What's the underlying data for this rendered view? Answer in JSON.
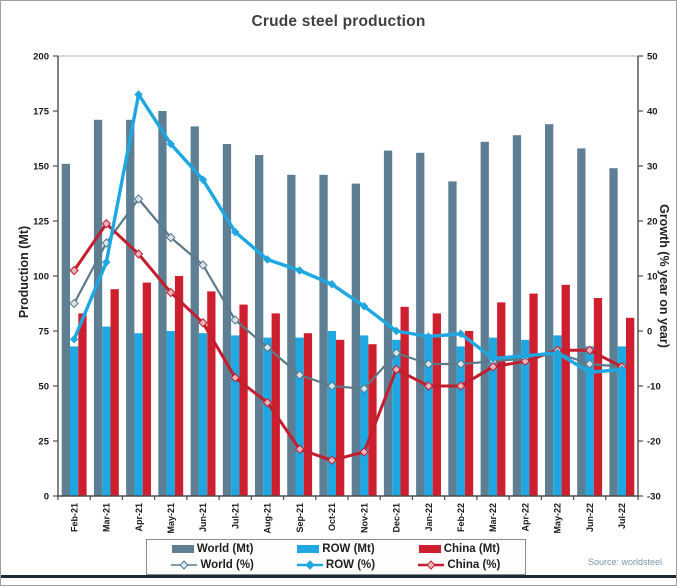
{
  "title": "Crude steel production",
  "source_note": "Source: worldsteel",
  "axes": {
    "left_title": "Production (Mt)",
    "right_title": "Growth (% year on year)",
    "left_ticks": [
      0,
      25,
      50,
      75,
      100,
      125,
      150,
      175,
      200
    ],
    "right_ticks": [
      -30,
      -20,
      -10,
      0,
      10,
      20,
      30,
      40,
      50
    ]
  },
  "colors": {
    "world_bar": "#5e7f93",
    "row_bar": "#1ea7e0",
    "china_bar": "#ce1f2f",
    "world_line": "#5a7a8a",
    "world_marker_fill": "#dbe4e9",
    "row_line": "#1ea7e0",
    "china_line": "#c41e2e",
    "china_marker_fill": "#e7b6ba",
    "axis": "#4d4d4d",
    "plot_top_border": "#b3b3b3",
    "tick_text": "#1a1a1a",
    "frame": "#9aa0a6",
    "bottom_rule": "#1b2a38"
  },
  "chart_data": {
    "type": "bar+line combo",
    "title": "Crude steel production",
    "categories": [
      "Feb-21",
      "Mar-21",
      "Apr-21",
      "May-21",
      "Jun-21",
      "Jul-21",
      "Aug-21",
      "Sep-21",
      "Oct-21",
      "Nov-21",
      "Dec-21",
      "Jan-22",
      "Feb-22",
      "Mar-22",
      "Apr-22",
      "May-22",
      "Jun-22",
      "Jul-22"
    ],
    "bar_series": [
      {
        "name": "World (Mt)",
        "axis": "left",
        "values": [
          151,
          171,
          171,
          175,
          168,
          160,
          155,
          146,
          146,
          142,
          157,
          156,
          143,
          161,
          164,
          169,
          158,
          149
        ]
      },
      {
        "name": "ROW (Mt)",
        "axis": "left",
        "values": [
          68,
          77,
          74,
          75,
          74,
          73,
          72,
          72,
          75,
          73,
          71,
          73,
          68,
          72,
          71,
          73,
          68,
          68
        ]
      },
      {
        "name": "China (Mt)",
        "axis": "left",
        "values": [
          83,
          94,
          97,
          100,
          93,
          87,
          83,
          74,
          71,
          69,
          86,
          83,
          75,
          88,
          92,
          96,
          90,
          81
        ]
      }
    ],
    "line_series": [
      {
        "name": "World (%)",
        "axis": "right",
        "values": [
          5,
          16,
          24,
          17,
          12,
          2,
          -3,
          -8,
          -10,
          -10.5,
          -4,
          -6,
          -6,
          -5.5,
          -5,
          -4,
          -6,
          -6.5
        ]
      },
      {
        "name": "ROW (%)",
        "axis": "right",
        "values": [
          -1.5,
          12.5,
          43,
          34,
          27.5,
          18,
          13,
          11,
          8.5,
          4.5,
          0,
          -1,
          -0.5,
          -5,
          -4.5,
          -4,
          -7.5,
          -7
        ]
      },
      {
        "name": "China (%)",
        "axis": "right",
        "values": [
          11,
          19.5,
          14,
          7,
          1.5,
          -8.5,
          -13,
          -21.5,
          -23.5,
          -22,
          -7,
          -10,
          -10,
          -6.5,
          -5.5,
          -3.5,
          -3.5,
          -6.5
        ]
      }
    ],
    "ylabel_left": "Production (Mt)",
    "ylabel_right": "Growth (% year on year)",
    "ylim_left": [
      0,
      200
    ],
    "ylim_right": [
      -30,
      50
    ],
    "grid": false,
    "legend_position": "bottom",
    "source": "Source: worldsteel"
  }
}
